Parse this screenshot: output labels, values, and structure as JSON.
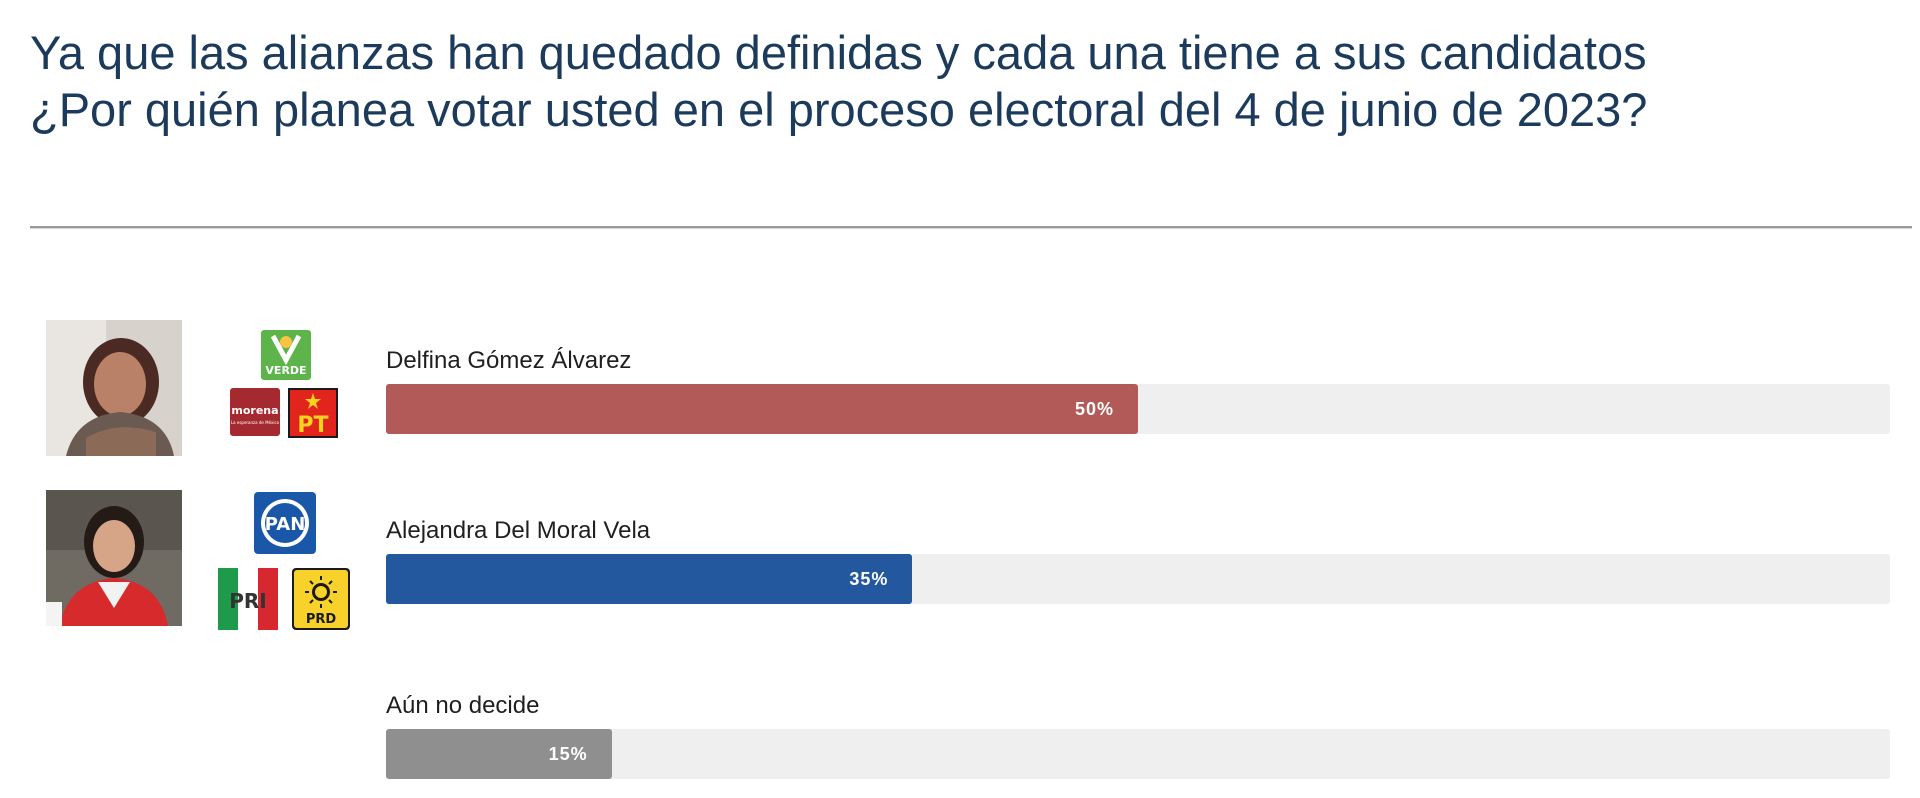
{
  "header": {
    "title_line1": "Ya que las alianzas han quedado definidas y cada una tiene a sus candidatos",
    "title_line2": "¿Por quién planea votar usted en el proceso electoral del 4 de junio de 2023?"
  },
  "parties": {
    "verde": "VERDE",
    "morena": "morena",
    "morena_tagline": "La esperanza de México",
    "pt": "PT",
    "pan": "PAN",
    "pri": "PRI",
    "prd": "PRD"
  },
  "chart_data": {
    "type": "bar",
    "orientation": "horizontal",
    "title": "Ya que las alianzas han quedado definidas y cada una tiene a sus candidatos ¿Por quién planea votar usted en el proceso electoral del 4 de junio de 2023?",
    "categories": [
      "Delfina Gómez Álvarez",
      "Alejandra Del Moral Vela",
      "Aún no decide"
    ],
    "values": [
      50,
      35,
      15
    ],
    "value_labels": [
      "50%",
      "35%",
      "15%"
    ],
    "colors": [
      "#b15a57",
      "#23589e",
      "#8f8f8f"
    ],
    "track_color": "#efefef",
    "xlim": [
      0,
      100
    ],
    "grid": false,
    "legend": "none"
  }
}
